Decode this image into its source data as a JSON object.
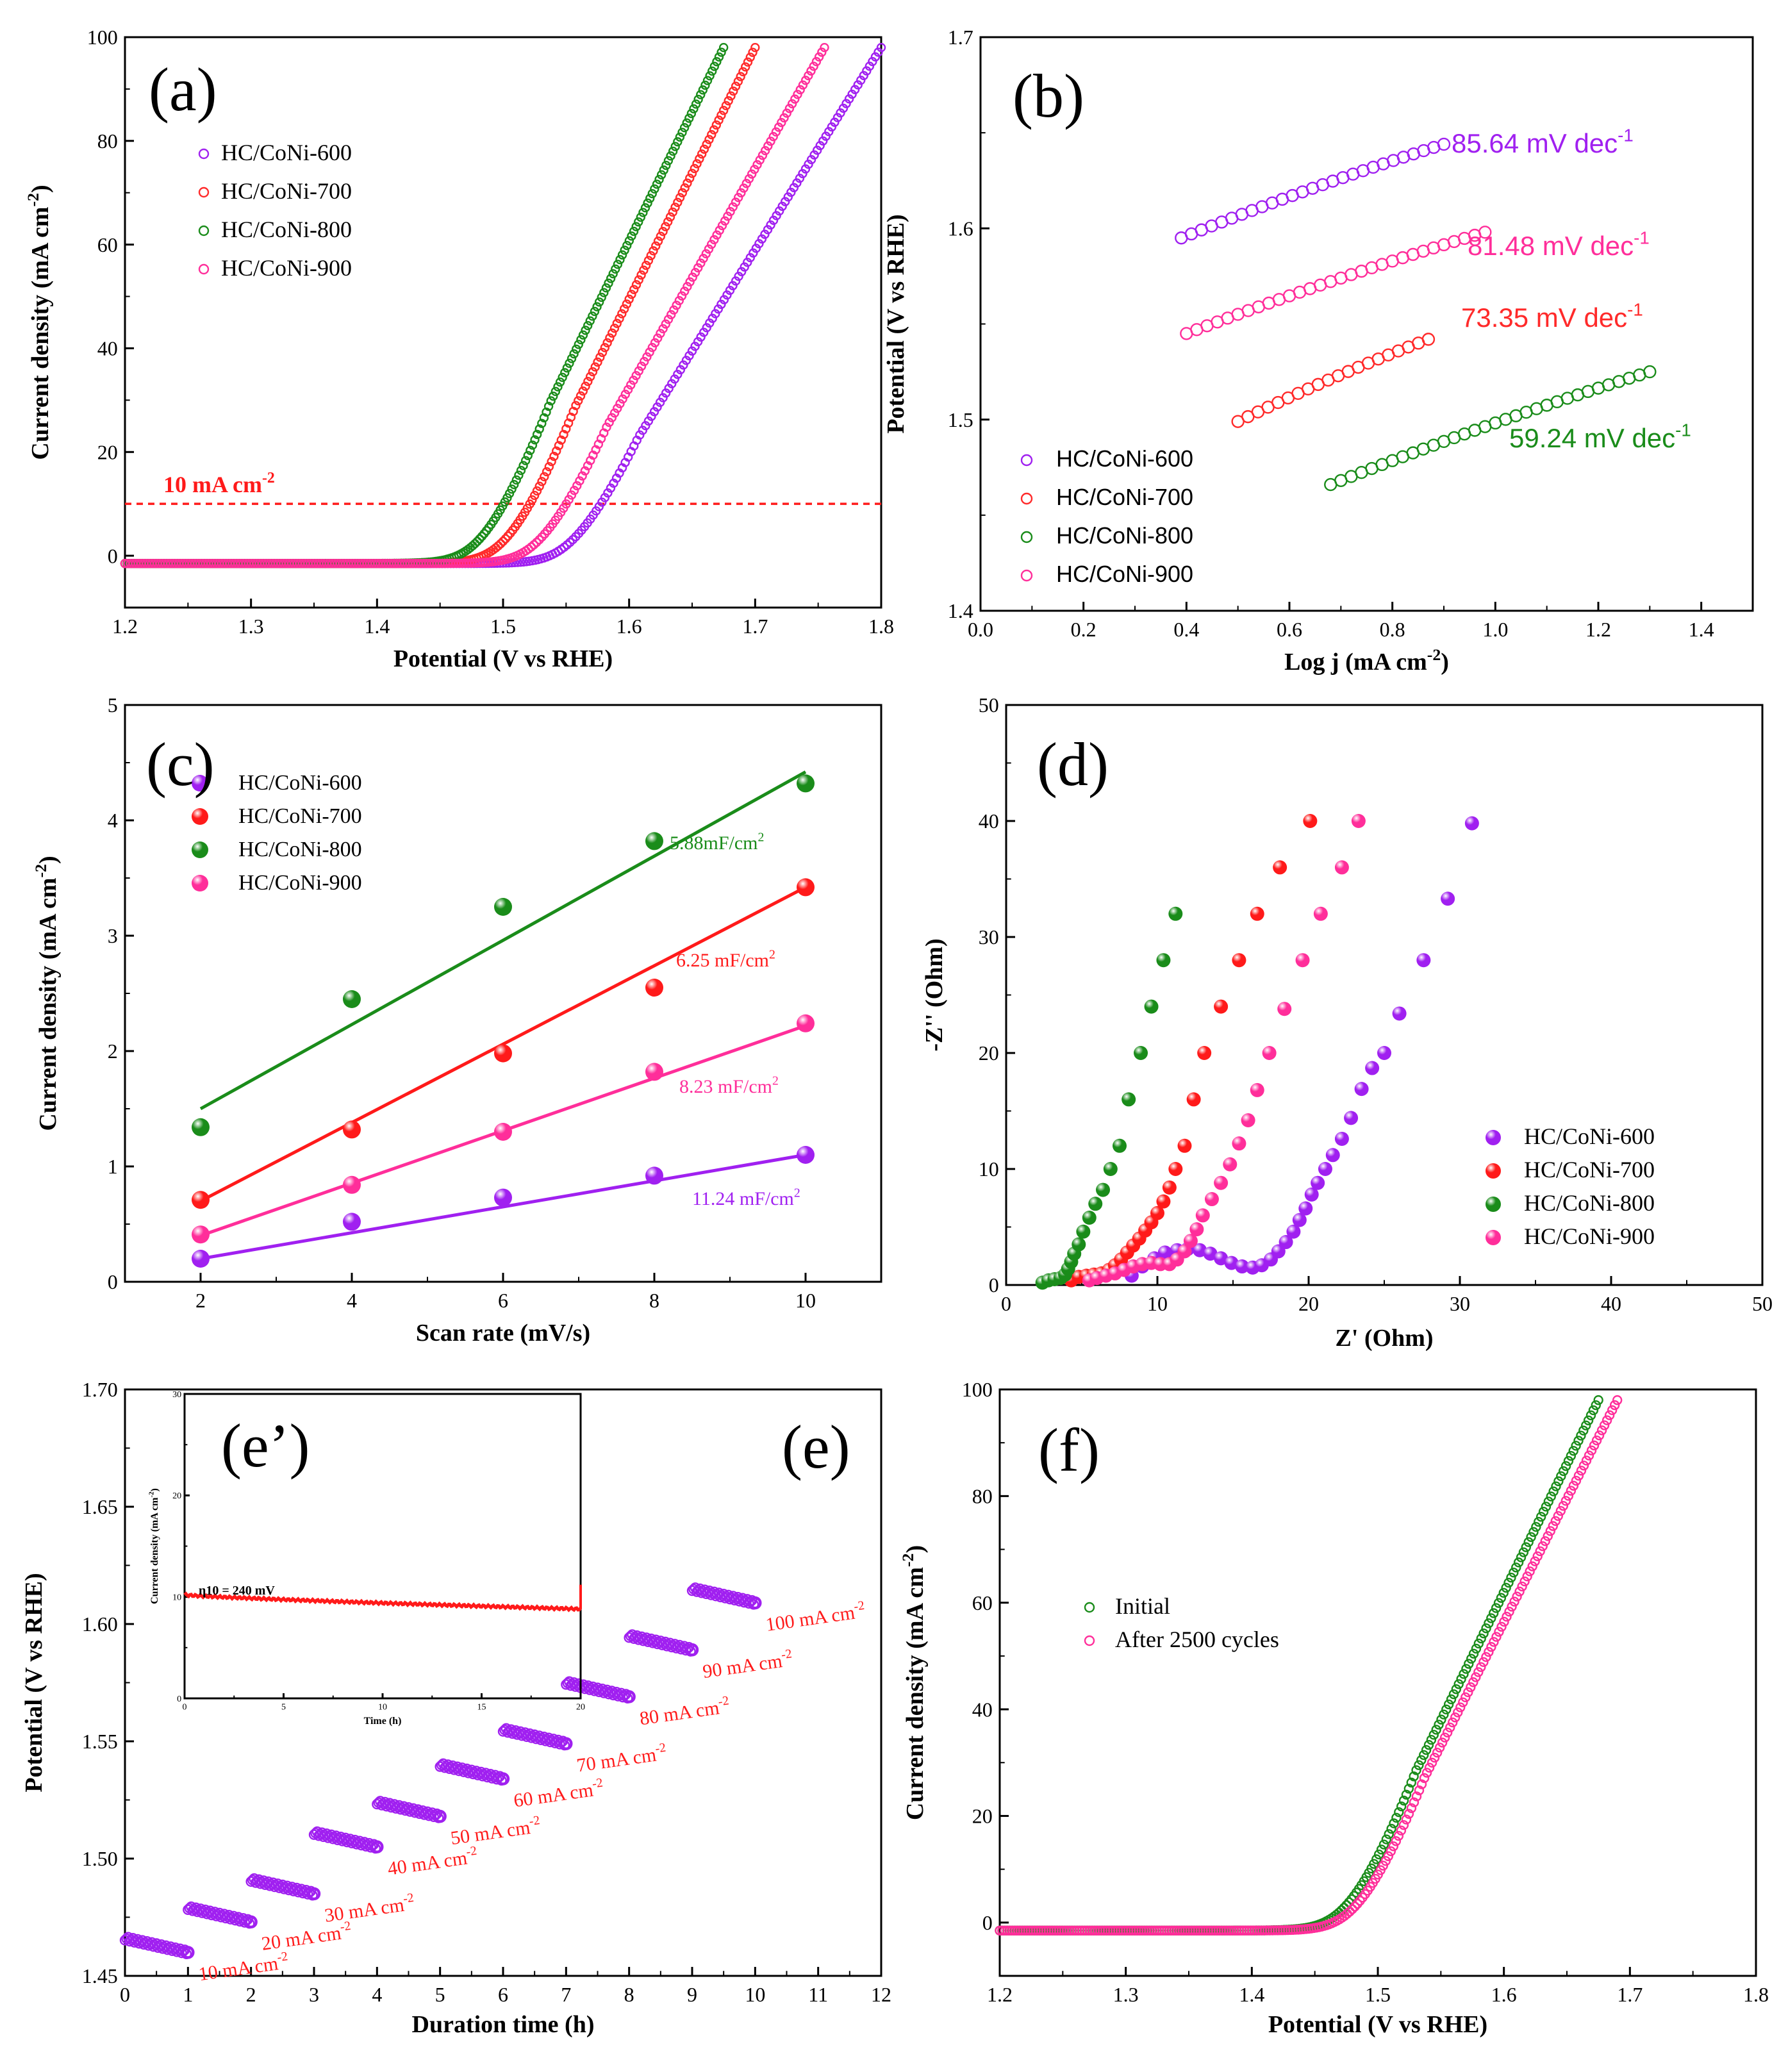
{
  "chart_data": [
    {
      "panel": "(a)",
      "type": "line",
      "title": "",
      "xlabel": "Potential (V vs RHE)",
      "ylabel": "Current density (mA cm-2)",
      "xlim": [
        1.2,
        1.8
      ],
      "ylim": [
        -10,
        100
      ],
      "xticks": [
        "1.2",
        "1.3",
        "1.4",
        "1.5",
        "1.6",
        "1.7",
        "1.8"
      ],
      "yticks": [
        "0",
        "20",
        "40",
        "60",
        "80",
        "100"
      ],
      "legend_position": "top-left",
      "series": [
        {
          "name": "HC/CoNi-600",
          "color": "#a020f0",
          "onset": 1.545,
          "x_end": 1.8,
          "y_end": 98
        },
        {
          "name": "HC/CoNi-700",
          "color": "#ff2a2a",
          "onset": 1.495,
          "x_end": 1.7,
          "y_end": 98
        },
        {
          "name": "HC/CoNi-800",
          "color": "#1a8c1a",
          "onset": 1.475,
          "x_end": 1.675,
          "y_end": 98
        },
        {
          "name": "HC/CoNi-900",
          "color": "#ff2e9a",
          "onset": 1.52,
          "x_end": 1.755,
          "y_end": 98
        }
      ],
      "annotations": [
        {
          "text": "10 mA cm",
          "sup": "-2",
          "y": 10
        }
      ]
    },
    {
      "panel": "(b)",
      "type": "scatter",
      "title": "",
      "xlabel": "Log j (mA cm-2)",
      "ylabel": "Potential (V vs RHE)",
      "xlim": [
        0.0,
        1.5
      ],
      "ylim": [
        1.4,
        1.7
      ],
      "xticks": [
        "0.0",
        "0.2",
        "0.4",
        "0.6",
        "0.8",
        "1.0",
        "1.2",
        "1.4"
      ],
      "yticks": [
        "1.4",
        "1.5",
        "1.6",
        "1.7"
      ],
      "legend_position": "bottom-left",
      "series": [
        {
          "name": "HC/CoNi-600",
          "color": "#a020f0",
          "x_start": 0.39,
          "y_start": 1.595,
          "x_end": 0.9,
          "y_end": 1.644,
          "label": "85.64 mV dec",
          "sup": "-1"
        },
        {
          "name": "HC/CoNi-700",
          "color": "#ff2a2a",
          "x_start": 0.5,
          "y_start": 1.499,
          "x_end": 0.87,
          "y_end": 1.542,
          "label": "73.35 mV dec",
          "sup": "-1"
        },
        {
          "name": "HC/CoNi-800",
          "color": "#1a8c1a",
          "x_start": 0.68,
          "y_start": 1.466,
          "x_end": 1.3,
          "y_end": 1.525,
          "label": "59.24 mV dec",
          "sup": "-1"
        },
        {
          "name": "HC/CoNi-900",
          "color": "#ff2e9a",
          "x_start": 0.4,
          "y_start": 1.545,
          "x_end": 0.98,
          "y_end": 1.598,
          "label": "81.48 mV dec",
          "sup": "-1"
        }
      ]
    },
    {
      "panel": "(c)",
      "type": "scatter",
      "title": "",
      "xlabel": "Scan rate (mV/s)",
      "ylabel": "Current density (mA cm-2)",
      "xlim": [
        1,
        11
      ],
      "ylim": [
        0,
        5
      ],
      "xticks": [
        "2",
        "4",
        "6",
        "8",
        "10"
      ],
      "yticks": [
        "0",
        "1",
        "2",
        "3",
        "4",
        "5"
      ],
      "legend_position": "top-left",
      "x": [
        2,
        4,
        6,
        8,
        10
      ],
      "series": [
        {
          "name": "HC/CoNi-600",
          "color": "#a020f0",
          "values": [
            0.2,
            0.52,
            0.73,
            0.92,
            1.1
          ],
          "fit": [
            0.2,
            1.1
          ],
          "label": "11.24 mF/cm",
          "sup": "2"
        },
        {
          "name": "HC/CoNi-700",
          "color": "#ff1a1a",
          "values": [
            0.71,
            1.32,
            1.98,
            2.55,
            3.42
          ],
          "fit": [
            0.7,
            3.42
          ],
          "label": "6.25 mF/cm",
          "sup": "2"
        },
        {
          "name": "HC/CoNi-800",
          "color": "#1a8c1a",
          "values": [
            1.34,
            2.45,
            3.25,
            3.82,
            4.32
          ],
          "fit": [
            1.5,
            4.42
          ],
          "label": "5.88mF/cm",
          "sup": "2"
        },
        {
          "name": "HC/CoNi-900",
          "color": "#ff2e9a",
          "values": [
            0.41,
            0.84,
            1.3,
            1.82,
            2.24
          ],
          "fit": [
            0.4,
            2.22
          ],
          "label": "8.23 mF/cm",
          "sup": "2"
        }
      ]
    },
    {
      "panel": "(d)",
      "type": "scatter",
      "title": "",
      "xlabel": "Z' (Ohm)",
      "ylabel": "-Z'' (Ohm)",
      "xlim": [
        0,
        50
      ],
      "ylim": [
        0,
        50
      ],
      "xticks": [
        "0",
        "10",
        "20",
        "30",
        "40",
        "50"
      ],
      "yticks": [
        "0",
        "10",
        "20",
        "30",
        "40",
        "50"
      ],
      "legend_position": "bottom-right",
      "series": [
        {
          "name": "HC/CoNi-600",
          "color": "#a020f0",
          "points": [
            [
              8.3,
              0.8
            ],
            [
              9,
              1.6
            ],
            [
              9.8,
              2.3
            ],
            [
              10.5,
              2.8
            ],
            [
              11.3,
              3.0
            ],
            [
              12,
              3.1
            ],
            [
              12.8,
              3.0
            ],
            [
              13.5,
              2.7
            ],
            [
              14.2,
              2.3
            ],
            [
              14.9,
              1.9
            ],
            [
              15.6,
              1.6
            ],
            [
              16.3,
              1.5
            ],
            [
              16.9,
              1.7
            ],
            [
              17.5,
              2.2
            ],
            [
              18,
              2.9
            ],
            [
              18.5,
              3.7
            ],
            [
              19,
              4.6
            ],
            [
              19.4,
              5.6
            ],
            [
              19.8,
              6.6
            ],
            [
              20.2,
              7.8
            ],
            [
              20.6,
              8.8
            ],
            [
              21.1,
              10
            ],
            [
              21.6,
              11.2
            ],
            [
              22.2,
              12.6
            ],
            [
              22.8,
              14.4
            ],
            [
              23.5,
              16.9
            ],
            [
              24.2,
              18.7
            ],
            [
              25,
              20
            ],
            [
              26,
              23.4
            ],
            [
              27.6,
              28
            ],
            [
              29.2,
              33.3
            ],
            [
              30.8,
              39.8
            ]
          ]
        },
        {
          "name": "HC/CoNi-700",
          "color": "#ff1a1a",
          "points": [
            [
              4.3,
              0.4
            ],
            [
              4.8,
              0.7
            ],
            [
              5.3,
              0.8
            ],
            [
              5.8,
              0.9
            ],
            [
              6.3,
              1.0
            ],
            [
              6.8,
              1.3
            ],
            [
              7.2,
              1.7
            ],
            [
              7.6,
              2.2
            ],
            [
              8,
              2.8
            ],
            [
              8.4,
              3.4
            ],
            [
              8.8,
              4.0
            ],
            [
              9.2,
              4.7
            ],
            [
              9.6,
              5.4
            ],
            [
              10,
              6.2
            ],
            [
              10.4,
              7.2
            ],
            [
              10.8,
              8.4
            ],
            [
              11.2,
              10
            ],
            [
              11.8,
              12
            ],
            [
              12.4,
              16
            ],
            [
              13.1,
              20
            ],
            [
              14.2,
              24
            ],
            [
              15.4,
              28
            ],
            [
              16.6,
              32
            ],
            [
              18.1,
              36
            ],
            [
              20.1,
              40
            ]
          ]
        },
        {
          "name": "HC/CoNi-800",
          "color": "#1a8c1a",
          "points": [
            [
              2.4,
              0.2
            ],
            [
              2.8,
              0.4
            ],
            [
              3.2,
              0.5
            ],
            [
              3.6,
              0.6
            ],
            [
              3.9,
              0.9
            ],
            [
              4.1,
              1.4
            ],
            [
              4.3,
              2.0
            ],
            [
              4.5,
              2.7
            ],
            [
              4.8,
              3.5
            ],
            [
              5.1,
              4.6
            ],
            [
              5.5,
              5.8
            ],
            [
              5.9,
              7.0
            ],
            [
              6.4,
              8.2
            ],
            [
              6.9,
              10
            ],
            [
              7.5,
              12
            ],
            [
              8.1,
              16
            ],
            [
              8.9,
              20
            ],
            [
              9.6,
              24
            ],
            [
              10.4,
              28
            ],
            [
              11.2,
              32
            ]
          ]
        },
        {
          "name": "HC/CoNi-900",
          "color": "#ff2e9a",
          "points": [
            [
              5.5,
              0.4
            ],
            [
              6,
              0.6
            ],
            [
              6.6,
              0.8
            ],
            [
              7.2,
              1.0
            ],
            [
              7.8,
              1.3
            ],
            [
              8.4,
              1.6
            ],
            [
              9,
              1.8
            ],
            [
              9.6,
              1.9
            ],
            [
              10.2,
              1.8
            ],
            [
              10.8,
              1.8
            ],
            [
              11.3,
              2.2
            ],
            [
              11.8,
              2.9
            ],
            [
              12.2,
              3.8
            ],
            [
              12.6,
              4.8
            ],
            [
              13,
              6.0
            ],
            [
              13.6,
              7.4
            ],
            [
              14.2,
              8.8
            ],
            [
              14.8,
              10.4
            ],
            [
              15.4,
              12.2
            ],
            [
              16,
              14.2
            ],
            [
              16.6,
              16.8
            ],
            [
              17.4,
              20
            ],
            [
              18.4,
              23.8
            ],
            [
              19.6,
              28
            ],
            [
              20.8,
              32
            ],
            [
              22.2,
              36
            ],
            [
              23.3,
              40
            ]
          ]
        }
      ]
    },
    {
      "panel": "(e)",
      "type": "scatter",
      "title": "",
      "xlabel": "Duration time (h)",
      "ylabel": "Potential (V vs RHE)",
      "xlim": [
        0,
        12
      ],
      "ylim": [
        1.45,
        1.7
      ],
      "xticks": [
        "0",
        "1",
        "2",
        "3",
        "4",
        "5",
        "6",
        "7",
        "8",
        "9",
        "10",
        "11",
        "12"
      ],
      "yticks": [
        "1.45",
        "1.50",
        "1.55",
        "1.60",
        "1.65",
        "1.70"
      ],
      "color": "#a020f0",
      "label_color": "#ff1a1a",
      "steps": [
        {
          "t0": 0,
          "t1": 1,
          "v0": 1.466,
          "v1": 1.46,
          "label": "10 mA cm",
          "sup": "-2"
        },
        {
          "t0": 1,
          "t1": 2,
          "v0": 1.479,
          "v1": 1.473,
          "label": "20 mA cm",
          "sup": "-2"
        },
        {
          "t0": 2,
          "t1": 3,
          "v0": 1.491,
          "v1": 1.485,
          "label": "30 mA cm",
          "sup": "-2"
        },
        {
          "t0": 3,
          "t1": 4,
          "v0": 1.511,
          "v1": 1.505,
          "label": "40 mA cm",
          "sup": "-2"
        },
        {
          "t0": 4,
          "t1": 5,
          "v0": 1.524,
          "v1": 1.518,
          "label": "50 mA cm",
          "sup": "-2"
        },
        {
          "t0": 5,
          "t1": 6,
          "v0": 1.54,
          "v1": 1.534,
          "label": "60 mA cm",
          "sup": "-2"
        },
        {
          "t0": 6,
          "t1": 7,
          "v0": 1.555,
          "v1": 1.549,
          "label": "70 mA cm",
          "sup": "-2"
        },
        {
          "t0": 7,
          "t1": 8,
          "v0": 1.575,
          "v1": 1.569,
          "label": "80 mA cm",
          "sup": "-2"
        },
        {
          "t0": 8,
          "t1": 9,
          "v0": 1.595,
          "v1": 1.589,
          "label": "90 mA cm",
          "sup": "-2"
        },
        {
          "t0": 9,
          "t1": 10,
          "v0": 1.615,
          "v1": 1.609,
          "label": "100 mA cm",
          "sup": "-2"
        }
      ],
      "inset": {
        "panel": "(e’)",
        "type": "line",
        "xlabel": "Time (h)",
        "ylabel": "Current density (mA cm-2)",
        "xlim": [
          0,
          20
        ],
        "ylim": [
          0,
          30
        ],
        "xticks": [
          "0",
          "5",
          "10",
          "15",
          "20"
        ],
        "yticks": [
          "0",
          "10",
          "20",
          "30"
        ],
        "annotation": "η10 = 240 mV",
        "color": "#ff1a1a",
        "y_start": 10.2,
        "y_end": 8.8
      }
    },
    {
      "panel": "(f)",
      "type": "line",
      "title": "",
      "xlabel": "Potential (V vs RHE)",
      "ylabel": "Current density (mA cm-2)",
      "xlim": [
        1.2,
        1.8
      ],
      "ylim": [
        -10,
        100
      ],
      "xticks": [
        "1.2",
        "1.3",
        "1.4",
        "1.5",
        "1.6",
        "1.7",
        "1.8"
      ],
      "yticks": [
        "0",
        "20",
        "40",
        "60",
        "80",
        "100"
      ],
      "legend_position": "center-left",
      "series": [
        {
          "name": "Initial",
          "color": "#1a8c1a",
          "onset": 1.468,
          "x_end": 1.675,
          "y_end": 98
        },
        {
          "name": "After 2500 cycles",
          "color": "#ff2e9a",
          "onset": 1.475,
          "x_end": 1.69,
          "y_end": 98
        }
      ]
    }
  ]
}
